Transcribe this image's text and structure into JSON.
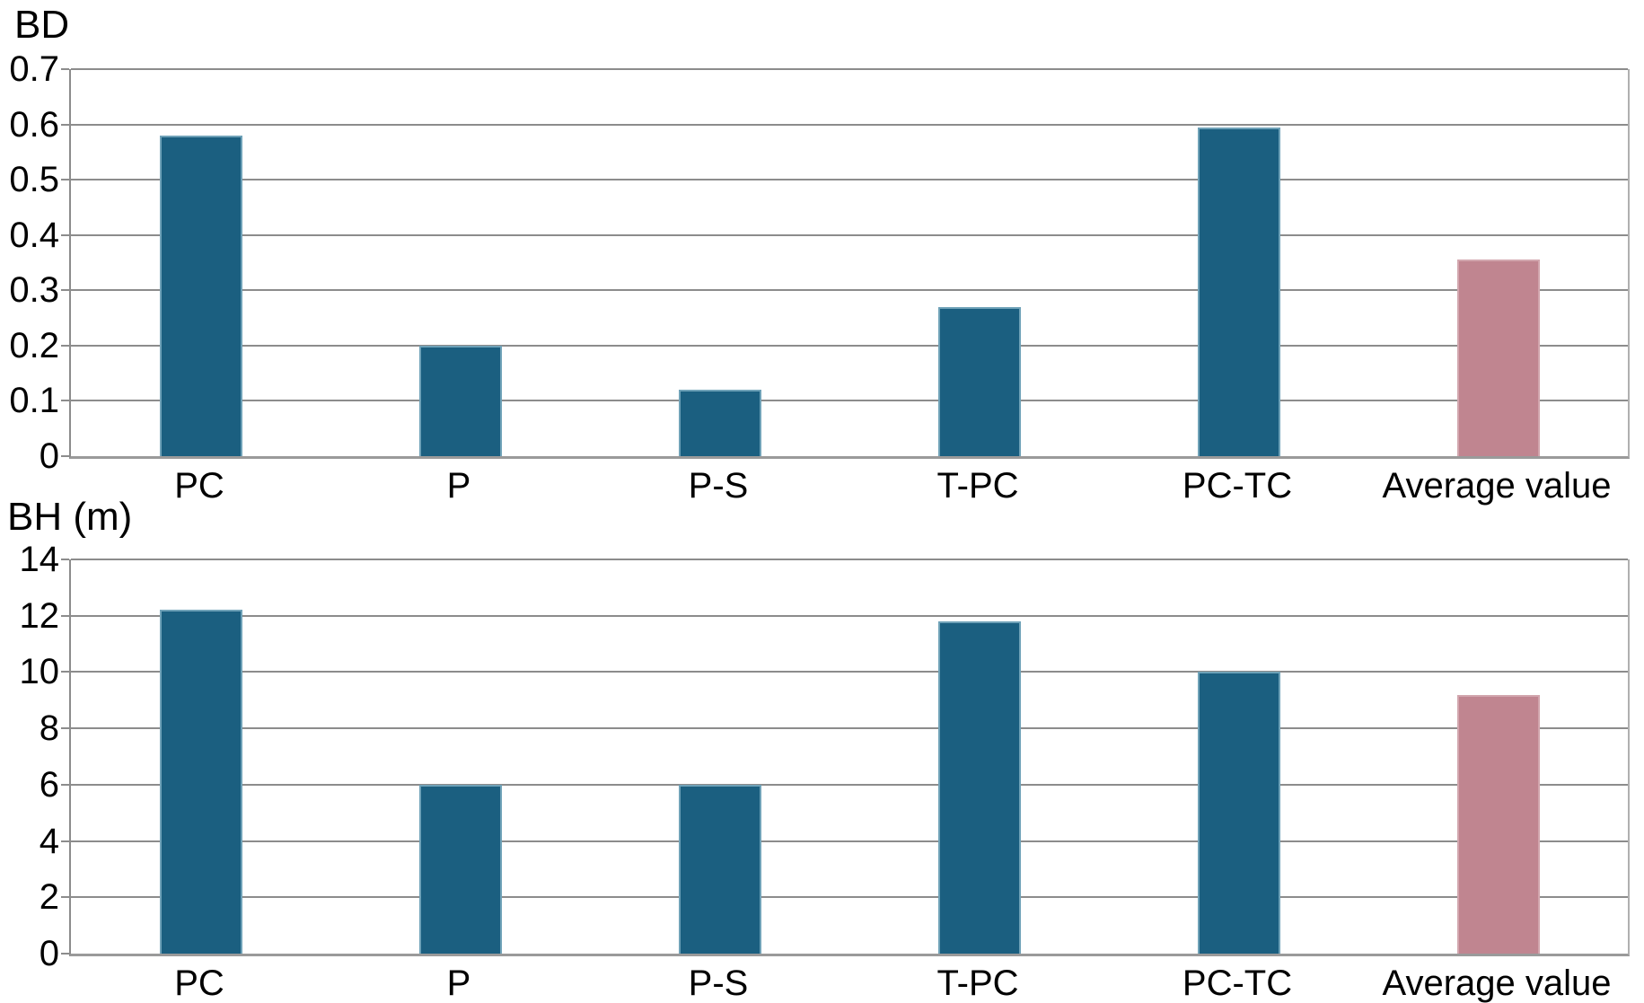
{
  "figure": {
    "background": "#ffffff"
  },
  "colors": {
    "bar_blue": "#1b5f80",
    "bar_blue_edge": "#6fa2b8",
    "bar_pink": "#c08590",
    "bar_pink_edge": "#d2a6ae",
    "gridline": "#8c8c8c",
    "text": "#000000"
  },
  "chart_data": [
    {
      "type": "bar",
      "title": "BD",
      "categories": [
        "PC",
        "P",
        "P-S",
        "T-PC",
        "PC-TC",
        "Average value"
      ],
      "values": [
        0.58,
        0.2,
        0.12,
        0.27,
        0.595,
        0.355
      ],
      "highlight_index": 5,
      "ylim": [
        0,
        0.7
      ],
      "yticks": [
        0,
        0.1,
        0.2,
        0.3,
        0.4,
        0.5,
        0.6,
        0.7
      ],
      "ytick_labels": [
        "0",
        "0.1",
        "0.2",
        "0.3",
        "0.4",
        "0.5",
        "0.6",
        "0.7"
      ],
      "xlabel": "",
      "ylabel": "",
      "grid": true,
      "legend": false
    },
    {
      "type": "bar",
      "title": "BH (m)",
      "categories": [
        "PC",
        "P",
        "P-S",
        "T-PC",
        "PC-TC",
        "Average value"
      ],
      "values": [
        12.2,
        6,
        6,
        11.8,
        10,
        9.2
      ],
      "highlight_index": 5,
      "ylim": [
        0,
        14
      ],
      "yticks": [
        0,
        2,
        4,
        6,
        8,
        10,
        12,
        14
      ],
      "ytick_labels": [
        "0",
        "2",
        "4",
        "6",
        "8",
        "10",
        "12",
        "14"
      ],
      "xlabel": "",
      "ylabel": "",
      "grid": true,
      "legend": false
    }
  ]
}
